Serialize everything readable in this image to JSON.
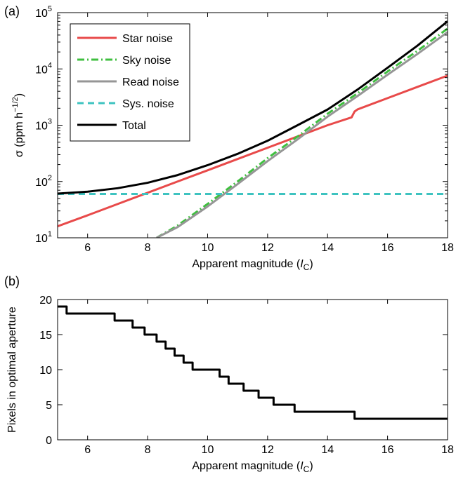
{
  "chart_data": [
    {
      "panel_label": "(a)",
      "type": "line",
      "x_scale": "linear",
      "y_scale": "log",
      "xlabel": "Apparent magnitude (",
      "xlabel_italic": "I",
      "xlabel_sub": "C",
      "xlabel_end": ")",
      "ylabel": "σ (ppm h",
      "ylabel_sup": "−1/2",
      "ylabel_end": ")",
      "xlim": [
        5,
        18
      ],
      "ylim": [
        10,
        100000
      ],
      "x_ticks": [
        6,
        8,
        10,
        12,
        14,
        16,
        18
      ],
      "y_ticks": [
        10,
        100,
        1000,
        10000,
        100000
      ],
      "y_tick_labels": [
        {
          "base": "10",
          "exp": "1"
        },
        {
          "base": "10",
          "exp": "2"
        },
        {
          "base": "10",
          "exp": "3"
        },
        {
          "base": "10",
          "exp": "4"
        },
        {
          "base": "10",
          "exp": "5"
        }
      ],
      "legend_position": "top-left",
      "series": [
        {
          "name": "Star noise",
          "color": "#e84a4a",
          "style": "solid",
          "x": [
            5,
            6,
            7,
            8,
            9,
            10,
            11,
            12,
            13,
            14,
            14.8,
            14.9,
            15,
            16,
            17,
            18
          ],
          "y": [
            16,
            25.1,
            39.8,
            63.1,
            100,
            158,
            251,
            398,
            631,
            1000,
            1380,
            1750,
            1910,
            3030,
            4800,
            7600
          ]
        },
        {
          "name": "Sky noise",
          "color": "#3fbf3f",
          "style": "dash-dot",
          "x": [
            8.3,
            9,
            10,
            11,
            12,
            13,
            14,
            15,
            16,
            17,
            18
          ],
          "y": [
            10,
            16.5,
            40,
            100,
            260,
            630,
            1600,
            3700,
            9000,
            21000,
            52000
          ]
        },
        {
          "name": "Read noise",
          "color": "#969696",
          "style": "solid",
          "x": [
            8.3,
            9,
            10,
            11,
            12,
            13,
            14,
            15,
            16,
            17,
            18
          ],
          "y": [
            10,
            15.5,
            36,
            90,
            230,
            560,
            1420,
            3300,
            7900,
            18500,
            45000
          ]
        },
        {
          "name": "Sys. noise",
          "color": "#3ec3c0",
          "style": "dashed",
          "x": [
            5,
            18
          ],
          "y": [
            60,
            60
          ]
        },
        {
          "name": "Total",
          "color": "#000000",
          "style": "solid",
          "x": [
            5,
            6,
            7,
            8,
            9,
            10,
            11,
            12,
            13,
            14,
            15,
            16,
            17,
            18
          ],
          "y": [
            61,
            66,
            76,
            95,
            130,
            195,
            310,
            530,
            1000,
            1900,
            4300,
            10500,
            26000,
            70000
          ]
        }
      ]
    },
    {
      "panel_label": "(b)",
      "type": "line",
      "x_scale": "linear",
      "y_scale": "linear",
      "xlabel": "Apparent magnitude (",
      "xlabel_italic": "I",
      "xlabel_sub": "C",
      "xlabel_end": ")",
      "ylabel": "Pixels in optimal aperture",
      "xlim": [
        5,
        18
      ],
      "ylim": [
        0,
        20
      ],
      "x_ticks": [
        6,
        8,
        10,
        12,
        14,
        16,
        18
      ],
      "y_ticks": [
        0,
        5,
        10,
        15,
        20
      ],
      "series": [
        {
          "color": "#000000",
          "style": "step",
          "x": [
            5,
            5.2,
            5.3,
            6.9,
            7.5,
            7.9,
            8.3,
            8.6,
            8.9,
            9.2,
            9.5,
            9.8,
            10.4,
            10.7,
            11.2,
            11.7,
            12.2,
            12.9,
            14.9,
            18
          ],
          "y": [
            19,
            19,
            18,
            17,
            16,
            15,
            14,
            13,
            12,
            11,
            10,
            10,
            9,
            8,
            7,
            6,
            5,
            4,
            3,
            3
          ]
        }
      ]
    }
  ]
}
